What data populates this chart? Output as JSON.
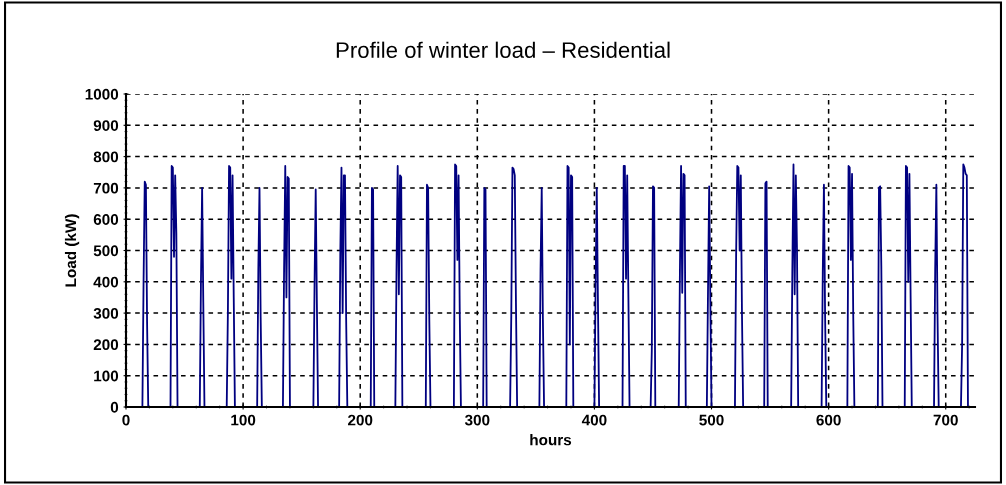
{
  "chart_data": {
    "type": "line",
    "title": "Profile of winter load – Residential",
    "xlabel": "hours",
    "ylabel": "Load (kW)",
    "xlim": [
      0,
      725
    ],
    "xticks": [
      0,
      100,
      200,
      300,
      400,
      500,
      600,
      700
    ],
    "ylim": [
      0,
      1000
    ],
    "yticks": [
      0,
      100,
      200,
      300,
      400,
      500,
      600,
      700,
      800,
      900,
      1000
    ],
    "grid": true,
    "legend": false,
    "marker": "none",
    "line_style": "solid",
    "series": [
      {
        "color": "#000080",
        "x": [
          0,
          14,
          15,
          16,
          17,
          18,
          19,
          38,
          39,
          40,
          41,
          42,
          43,
          44,
          63,
          64,
          65,
          66,
          67,
          86,
          87,
          88,
          89,
          90,
          91,
          92,
          93,
          112,
          113,
          114,
          115,
          116,
          134,
          135,
          136,
          137,
          138,
          139,
          140,
          160,
          161,
          162,
          163,
          164,
          182,
          183,
          184,
          185,
          186,
          187,
          188,
          189,
          209,
          210,
          211,
          212,
          230,
          231,
          232,
          233,
          234,
          235,
          236,
          256,
          257,
          258,
          259,
          260,
          280,
          281,
          282,
          283,
          284,
          285,
          286,
          305,
          306,
          307,
          308,
          328,
          329,
          330,
          331,
          332,
          333,
          334,
          353,
          354,
          355,
          356,
          357,
          376,
          377,
          378,
          379,
          380,
          381,
          382,
          400,
          401,
          402,
          403,
          404,
          424,
          425,
          426,
          427,
          428,
          429,
          430,
          448,
          449,
          450,
          451,
          452,
          472,
          473,
          474,
          475,
          476,
          477,
          478,
          496,
          497,
          498,
          499,
          500,
          520,
          521,
          522,
          523,
          524,
          525,
          526,
          527,
          545,
          546,
          547,
          548,
          568,
          569,
          570,
          571,
          572,
          573,
          574,
          594,
          595,
          596,
          597,
          598,
          616,
          617,
          618,
          619,
          620,
          621,
          622,
          642,
          643,
          644,
          645,
          646,
          665,
          666,
          667,
          668,
          669,
          670,
          671,
          690,
          691,
          692,
          693,
          694,
          713,
          714,
          715,
          716,
          717,
          718,
          719
        ],
        "values": [
          0,
          0,
          400,
          720,
          710,
          270,
          0,
          0,
          770,
          765,
          480,
          740,
          555,
          0,
          0,
          400,
          700,
          335,
          0,
          0,
          300,
          770,
          765,
          410,
          740,
          350,
          0,
          0,
          440,
          700,
          285,
          0,
          0,
          440,
          770,
          350,
          735,
          730,
          0,
          0,
          390,
          695,
          330,
          0,
          0,
          490,
          765,
          300,
          740,
          740,
          280,
          0,
          0,
          700,
          695,
          0,
          0,
          440,
          770,
          360,
          740,
          735,
          0,
          0,
          710,
          700,
          280,
          0,
          0,
          775,
          770,
          470,
          740,
          300,
          0,
          0,
          700,
          695,
          0,
          0,
          290,
          765,
          760,
          740,
          330,
          0,
          0,
          440,
          700,
          280,
          0,
          0,
          770,
          765,
          200,
          740,
          735,
          0,
          0,
          385,
          700,
          340,
          0,
          0,
          770,
          770,
          410,
          740,
          360,
          0,
          0,
          180,
          705,
          700,
          0,
          0,
          430,
          770,
          365,
          745,
          740,
          0,
          0,
          370,
          705,
          335,
          0,
          0,
          480,
          770,
          765,
          500,
          740,
          300,
          0,
          0,
          715,
          720,
          0,
          0,
          430,
          775,
          360,
          740,
          500,
          0,
          0,
          430,
          710,
          290,
          0,
          0,
          770,
          765,
          470,
          745,
          300,
          0,
          0,
          700,
          705,
          450,
          0,
          0,
          770,
          765,
          400,
          745,
          360,
          0,
          0,
          440,
          710,
          290,
          0,
          0,
          200,
          775,
          765,
          745,
          740,
          0
        ]
      }
    ]
  }
}
